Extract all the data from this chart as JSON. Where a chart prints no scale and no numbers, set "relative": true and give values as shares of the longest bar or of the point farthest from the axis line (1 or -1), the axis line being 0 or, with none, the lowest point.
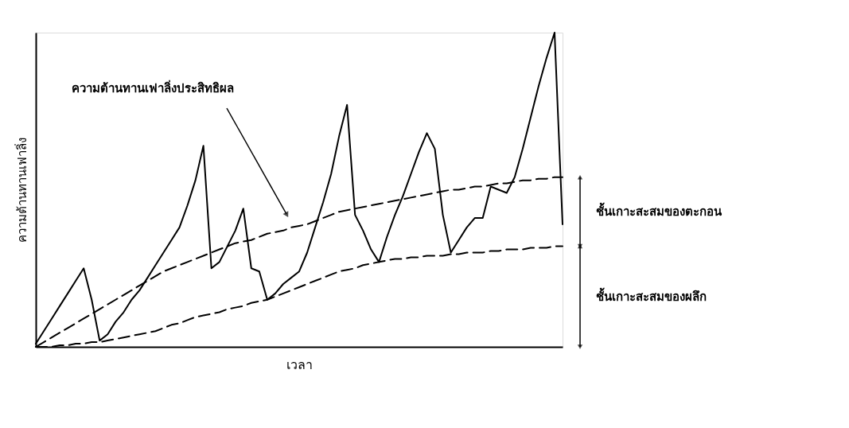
{
  "chart_data": {
    "type": "line",
    "relative": true,
    "xlabel": "เวลา",
    "ylabel": "ความต้านทานเฟาลิ่ง",
    "categories": [
      null,
      null,
      null,
      null,
      null,
      null,
      null,
      null,
      null,
      null,
      null,
      null,
      null,
      null,
      null,
      null,
      null,
      null,
      null,
      null,
      null,
      null,
      null,
      null,
      null,
      null,
      null,
      null,
      null,
      null,
      null,
      null,
      null,
      null,
      null,
      null,
      null,
      null,
      null,
      null,
      null,
      null,
      null,
      null,
      null,
      null,
      null,
      null,
      null,
      null,
      null,
      null,
      null,
      null,
      null,
      null,
      null,
      null,
      null,
      null,
      null,
      null,
      null,
      null,
      null,
      null,
      null
    ],
    "series": [
      {
        "color": "#000000",
        "line_style": "solid",
        "values": [
          0.01,
          0.05,
          0.09,
          0.13,
          0.17,
          0.21,
          0.25,
          0.15,
          0.02,
          0.04,
          0.08,
          0.11,
          0.15,
          0.18,
          0.22,
          0.26,
          0.3,
          0.34,
          0.38,
          0.45,
          0.53,
          0.64,
          0.25,
          0.27,
          0.32,
          0.37,
          0.44,
          0.25,
          0.24,
          0.15,
          0.17,
          0.2,
          0.22,
          0.24,
          0.3,
          0.38,
          0.46,
          0.55,
          0.67,
          0.77,
          0.42,
          0.37,
          0.31,
          0.27,
          0.35,
          0.42,
          0.48,
          0.55,
          0.62,
          0.68,
          0.63,
          0.42,
          0.3,
          0.34,
          0.38,
          0.41,
          0.41,
          0.51,
          0.5,
          0.49,
          0.54,
          0.63,
          0.73,
          0.83,
          0.92,
          1.0,
          0.39
        ]
      },
      {
        "color": "#000000",
        "line_style": "dashed",
        "values": [
          0,
          0.015,
          0.03,
          0.045,
          0.06,
          0.075,
          0.09,
          0.105,
          0.12,
          0.135,
          0.15,
          0.165,
          0.18,
          0.195,
          0.21,
          0.225,
          0.24,
          0.25,
          0.26,
          0.27,
          0.28,
          0.29,
          0.3,
          0.31,
          0.32,
          0.33,
          0.335,
          0.34,
          0.35,
          0.36,
          0.365,
          0.37,
          0.38,
          0.385,
          0.39,
          0.4,
          0.41,
          0.42,
          0.43,
          0.435,
          0.44,
          0.445,
          0.45,
          0.455,
          0.46,
          0.465,
          0.47,
          0.475,
          0.48,
          0.485,
          0.49,
          0.495,
          0.5,
          0.5,
          0.505,
          0.51,
          0.51,
          0.515,
          0.52,
          0.52,
          0.525,
          0.53,
          0.53,
          0.535,
          0.535,
          0.54,
          0.54
        ]
      },
      {
        "color": "#000000",
        "line_style": "dashed",
        "values": [
          0,
          0,
          0,
          0.005,
          0.005,
          0.01,
          0.01,
          0.015,
          0.015,
          0.02,
          0.025,
          0.03,
          0.035,
          0.04,
          0.045,
          0.05,
          0.06,
          0.07,
          0.075,
          0.085,
          0.095,
          0.1,
          0.105,
          0.11,
          0.12,
          0.125,
          0.13,
          0.14,
          0.145,
          0.15,
          0.16,
          0.17,
          0.18,
          0.19,
          0.2,
          0.21,
          0.22,
          0.23,
          0.24,
          0.245,
          0.25,
          0.26,
          0.265,
          0.27,
          0.275,
          0.28,
          0.28,
          0.285,
          0.285,
          0.29,
          0.29,
          0.29,
          0.295,
          0.295,
          0.3,
          0.3,
          0.3,
          0.305,
          0.305,
          0.31,
          0.31,
          0.31,
          0.315,
          0.315,
          0.315,
          0.32,
          0.32
        ]
      }
    ],
    "annotations": [
      "ความต้านทานเฟาลิ่งประสิทธิผล",
      "ชั้นเกาะสะสมของตะกอน",
      "ชั้นเกาะสะสมของผลึก"
    ]
  }
}
